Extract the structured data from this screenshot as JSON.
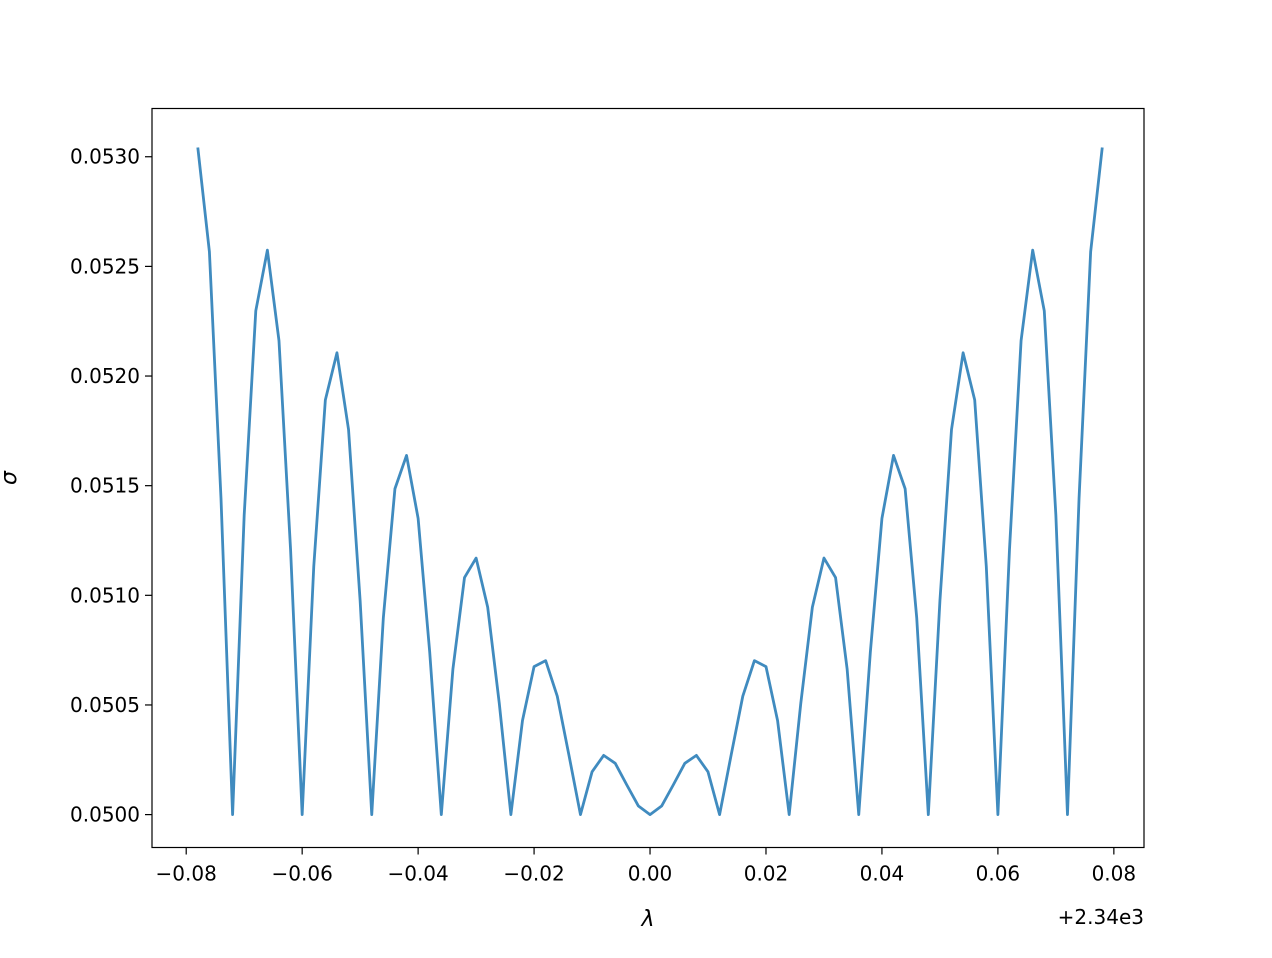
{
  "chart_data": {
    "type": "line",
    "title": "",
    "xlabel": "λ",
    "ylabel": "σ",
    "x_offset_label": "+2.34e3",
    "xlim": [
      -0.0859,
      0.0852
    ],
    "ylim": [
      0.04985,
      0.05322
    ],
    "grid": false,
    "line_color": "#1f77b4",
    "x_ticks": [
      -0.08,
      -0.06,
      -0.04,
      -0.02,
      0.0,
      0.02,
      0.04,
      0.06,
      0.08
    ],
    "x_tick_labels": [
      "−0.08",
      "−0.06",
      "−0.04",
      "−0.02",
      "0.00",
      "0.02",
      "0.04",
      "0.06",
      "0.08"
    ],
    "y_ticks": [
      0.05,
      0.0505,
      0.051,
      0.0515,
      0.052,
      0.0525,
      0.053
    ],
    "y_tick_labels": [
      "0.0500",
      "0.0505",
      "0.0510",
      "0.0515",
      "0.0520",
      "0.0525",
      "0.0530"
    ],
    "series": [
      {
        "x": [
          -0.078,
          -0.076,
          -0.074,
          -0.072,
          -0.07,
          -0.068,
          -0.066,
          -0.064,
          -0.062,
          -0.06,
          -0.058,
          -0.056,
          -0.054,
          -0.052,
          -0.05,
          -0.048,
          -0.046,
          -0.044,
          -0.042,
          -0.04,
          -0.038,
          -0.036,
          -0.034,
          -0.032,
          -0.03,
          -0.028,
          -0.026,
          -0.024,
          -0.022,
          -0.02,
          -0.018,
          -0.016,
          -0.014,
          -0.012,
          -0.01,
          -0.008,
          -0.006,
          -0.004,
          -0.002,
          0.0,
          0.002,
          0.004,
          0.006,
          0.008,
          0.01,
          0.012,
          0.014,
          0.016,
          0.018,
          0.02,
          0.022,
          0.024,
          0.026,
          0.028,
          0.03,
          0.032,
          0.034,
          0.036,
          0.038,
          0.04,
          0.042,
          0.044,
          0.046,
          0.048,
          0.05,
          0.052,
          0.054,
          0.056,
          0.058,
          0.06,
          0.062,
          0.064,
          0.066,
          0.068,
          0.07,
          0.072,
          0.074,
          0.076,
          0.078
        ],
        "y": [
          0.053042,
          0.052567,
          0.051443,
          0.05,
          0.051365,
          0.052297,
          0.052574,
          0.052162,
          0.051209,
          0.05,
          0.051131,
          0.051891,
          0.052106,
          0.051756,
          0.050975,
          0.05,
          0.050897,
          0.051486,
          0.051638,
          0.051351,
          0.050741,
          0.05,
          0.050663,
          0.051081,
          0.05117,
          0.050946,
          0.050507,
          0.05,
          0.050429,
          0.050675,
          0.050702,
          0.05054,
          0.050273,
          0.05,
          0.050195,
          0.05027,
          0.050234,
          0.050135,
          0.050039,
          0.05,
          0.050039,
          0.050135,
          0.050234,
          0.05027,
          0.050195,
          0.05,
          0.050273,
          0.05054,
          0.050702,
          0.050675,
          0.050429,
          0.05,
          0.050507,
          0.050946,
          0.05117,
          0.051081,
          0.050663,
          0.05,
          0.050741,
          0.051351,
          0.051638,
          0.051486,
          0.050897,
          0.05,
          0.050975,
          0.051756,
          0.052106,
          0.051891,
          0.051131,
          0.05,
          0.051209,
          0.052162,
          0.052574,
          0.052297,
          0.051365,
          0.05,
          0.051443,
          0.052567,
          0.053042
        ]
      }
    ]
  }
}
